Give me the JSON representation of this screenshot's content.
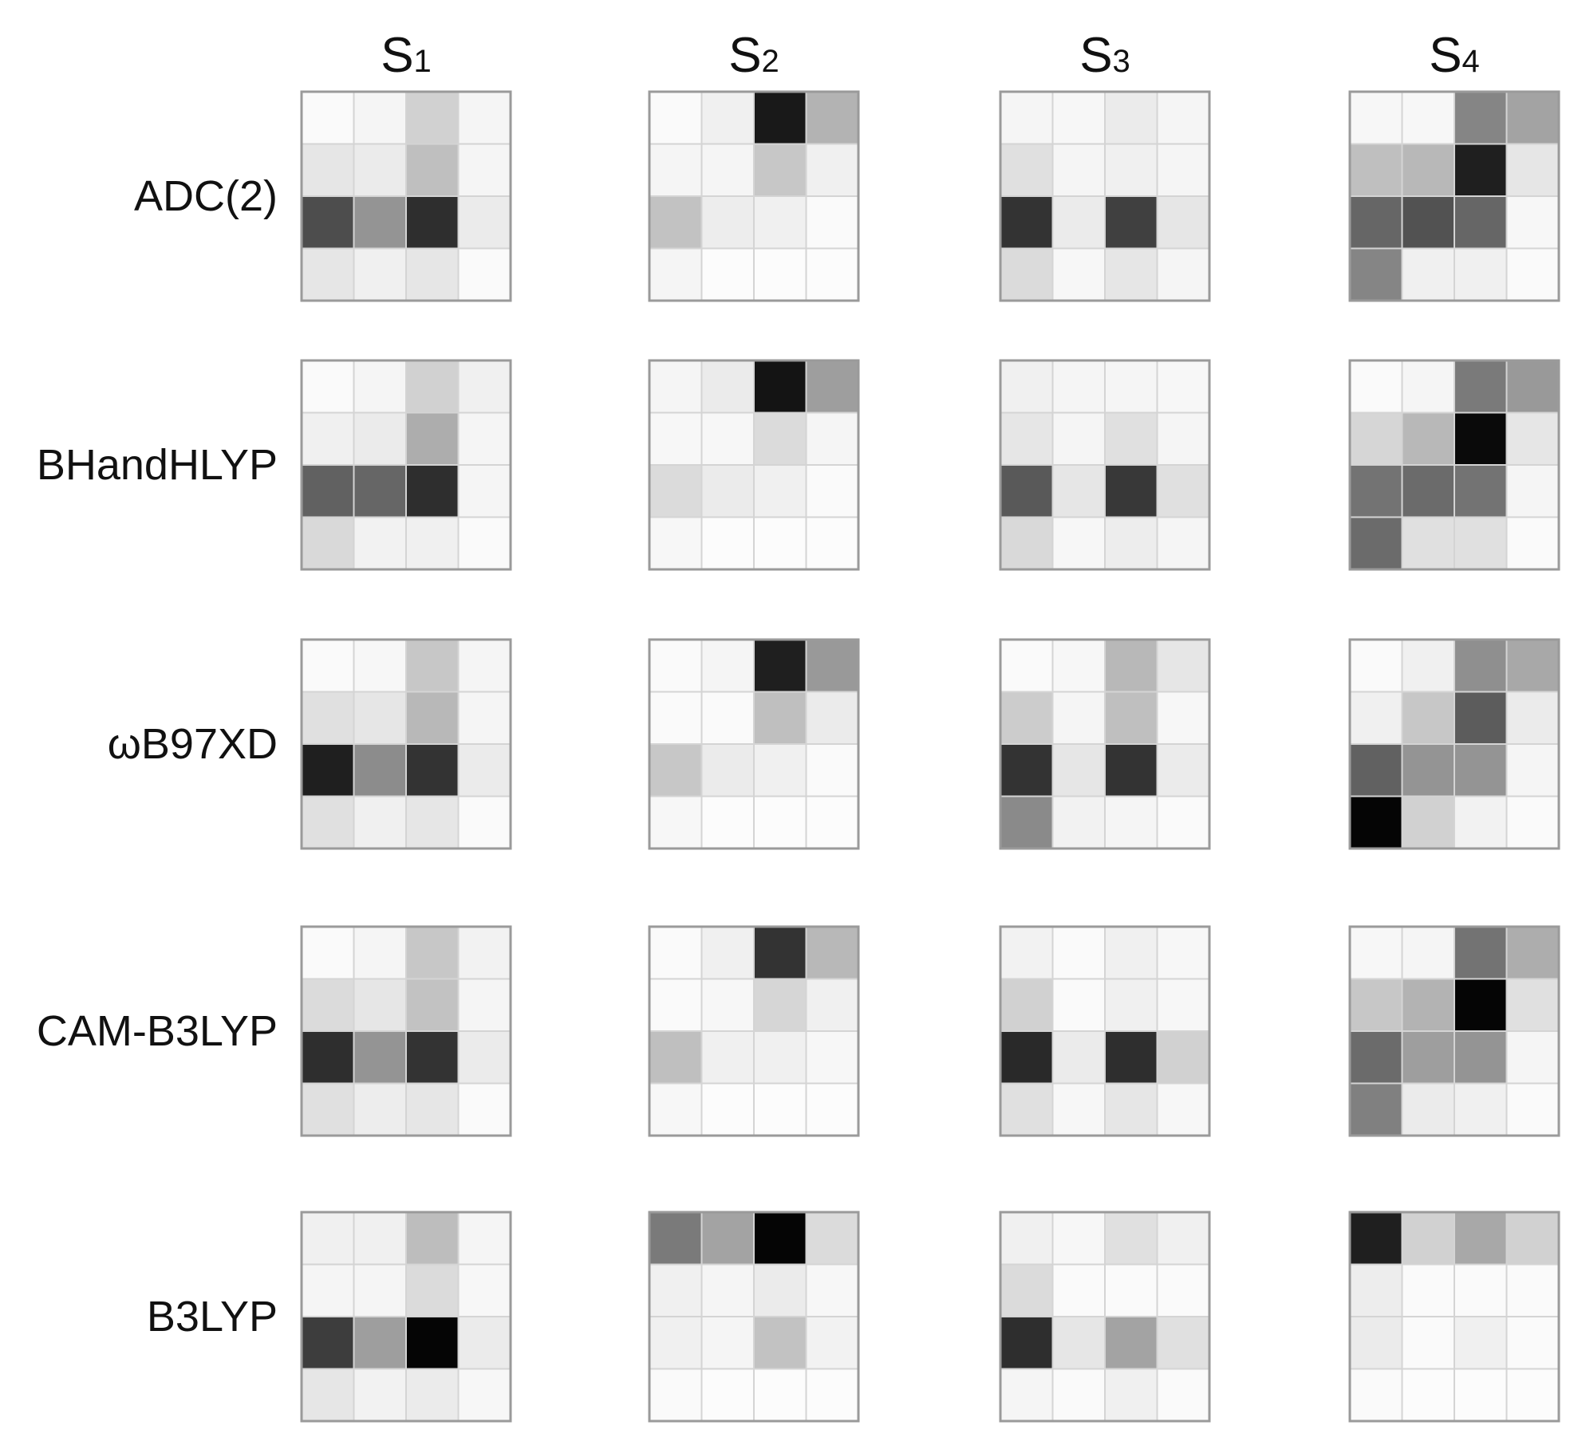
{
  "chart_data": {
    "type": "heatmap",
    "colormap": "grayscale",
    "value_range": [
      0,
      1
    ],
    "grid": "4x4",
    "columns": [
      {
        "name": "S",
        "sub": "1"
      },
      {
        "name": "S",
        "sub": "2"
      },
      {
        "name": "S",
        "sub": "3"
      },
      {
        "name": "S",
        "sub": "4"
      }
    ],
    "rows": [
      "ADC(2)",
      "BHandHLYP",
      "ωB97XD",
      "CAM-B3LYP",
      "B3LYP"
    ],
    "matrices": [
      [
        [
          [
            0.02,
            0.04,
            0.18,
            0.04
          ],
          [
            0.1,
            0.08,
            0.25,
            0.04
          ],
          [
            0.7,
            0.42,
            0.82,
            0.08
          ],
          [
            0.1,
            0.06,
            0.1,
            0.02
          ]
        ],
        [
          [
            0.02,
            0.06,
            0.9,
            0.3
          ],
          [
            0.04,
            0.04,
            0.22,
            0.06
          ],
          [
            0.24,
            0.07,
            0.06,
            0.02
          ],
          [
            0.04,
            0.01,
            0.01,
            0.01
          ]
        ],
        [
          [
            0.04,
            0.03,
            0.08,
            0.04
          ],
          [
            0.12,
            0.04,
            0.06,
            0.04
          ],
          [
            0.8,
            0.08,
            0.75,
            0.1
          ],
          [
            0.14,
            0.03,
            0.1,
            0.04
          ]
        ],
        [
          [
            0.03,
            0.03,
            0.48,
            0.36
          ],
          [
            0.25,
            0.28,
            0.88,
            0.1
          ],
          [
            0.6,
            0.68,
            0.6,
            0.03
          ],
          [
            0.48,
            0.06,
            0.06,
            0.02
          ]
        ]
      ],
      [
        [
          [
            0.02,
            0.04,
            0.18,
            0.06
          ],
          [
            0.06,
            0.08,
            0.32,
            0.04
          ],
          [
            0.62,
            0.6,
            0.82,
            0.04
          ],
          [
            0.15,
            0.05,
            0.06,
            0.02
          ]
        ],
        [
          [
            0.04,
            0.08,
            0.92,
            0.38
          ],
          [
            0.03,
            0.03,
            0.14,
            0.04
          ],
          [
            0.14,
            0.08,
            0.06,
            0.02
          ],
          [
            0.03,
            0.01,
            0.01,
            0.01
          ]
        ],
        [
          [
            0.06,
            0.04,
            0.04,
            0.03
          ],
          [
            0.1,
            0.04,
            0.12,
            0.04
          ],
          [
            0.65,
            0.1,
            0.78,
            0.12
          ],
          [
            0.15,
            0.03,
            0.07,
            0.04
          ]
        ],
        [
          [
            0.02,
            0.04,
            0.52,
            0.4
          ],
          [
            0.16,
            0.28,
            0.96,
            0.1
          ],
          [
            0.55,
            0.58,
            0.55,
            0.04
          ],
          [
            0.58,
            0.12,
            0.12,
            0.02
          ]
        ]
      ],
      [
        [
          [
            0.02,
            0.03,
            0.22,
            0.04
          ],
          [
            0.12,
            0.1,
            0.28,
            0.04
          ],
          [
            0.88,
            0.45,
            0.8,
            0.08
          ],
          [
            0.12,
            0.06,
            0.1,
            0.02
          ]
        ],
        [
          [
            0.02,
            0.04,
            0.88,
            0.4
          ],
          [
            0.02,
            0.02,
            0.25,
            0.08
          ],
          [
            0.22,
            0.08,
            0.06,
            0.02
          ],
          [
            0.03,
            0.01,
            0.01,
            0.01
          ]
        ],
        [
          [
            0.02,
            0.03,
            0.28,
            0.1
          ],
          [
            0.2,
            0.04,
            0.25,
            0.03
          ],
          [
            0.8,
            0.1,
            0.8,
            0.08
          ],
          [
            0.46,
            0.05,
            0.04,
            0.02
          ]
        ],
        [
          [
            0.02,
            0.06,
            0.44,
            0.34
          ],
          [
            0.06,
            0.22,
            0.64,
            0.08
          ],
          [
            0.62,
            0.42,
            0.42,
            0.04
          ],
          [
            0.98,
            0.18,
            0.05,
            0.02
          ]
        ]
      ],
      [
        [
          [
            0.02,
            0.04,
            0.22,
            0.05
          ],
          [
            0.14,
            0.1,
            0.24,
            0.04
          ],
          [
            0.82,
            0.42,
            0.8,
            0.08
          ],
          [
            0.12,
            0.07,
            0.1,
            0.02
          ]
        ],
        [
          [
            0.02,
            0.06,
            0.8,
            0.28
          ],
          [
            0.02,
            0.03,
            0.16,
            0.06
          ],
          [
            0.25,
            0.06,
            0.06,
            0.03
          ],
          [
            0.03,
            0.01,
            0.01,
            0.01
          ]
        ],
        [
          [
            0.05,
            0.02,
            0.06,
            0.03
          ],
          [
            0.18,
            0.02,
            0.06,
            0.03
          ],
          [
            0.84,
            0.08,
            0.82,
            0.18
          ],
          [
            0.12,
            0.03,
            0.1,
            0.03
          ]
        ],
        [
          [
            0.03,
            0.04,
            0.55,
            0.32
          ],
          [
            0.22,
            0.3,
            0.98,
            0.12
          ],
          [
            0.58,
            0.38,
            0.42,
            0.04
          ],
          [
            0.5,
            0.08,
            0.06,
            0.02
          ]
        ]
      ],
      [
        [
          [
            0.06,
            0.06,
            0.26,
            0.04
          ],
          [
            0.04,
            0.04,
            0.14,
            0.03
          ],
          [
            0.76,
            0.38,
            0.98,
            0.08
          ],
          [
            0.1,
            0.05,
            0.08,
            0.03
          ]
        ],
        [
          [
            0.52,
            0.36,
            0.98,
            0.14
          ],
          [
            0.06,
            0.04,
            0.08,
            0.03
          ],
          [
            0.06,
            0.04,
            0.24,
            0.05
          ],
          [
            0.02,
            0.01,
            0.01,
            0.01
          ]
        ],
        [
          [
            0.06,
            0.03,
            0.12,
            0.06
          ],
          [
            0.14,
            0.02,
            0.02,
            0.02
          ],
          [
            0.82,
            0.1,
            0.36,
            0.12
          ],
          [
            0.04,
            0.02,
            0.06,
            0.02
          ]
        ],
        [
          [
            0.88,
            0.18,
            0.34,
            0.18
          ],
          [
            0.07,
            0.02,
            0.02,
            0.02
          ],
          [
            0.08,
            0.02,
            0.06,
            0.02
          ],
          [
            0.02,
            0.01,
            0.01,
            0.01
          ]
        ]
      ]
    ]
  }
}
